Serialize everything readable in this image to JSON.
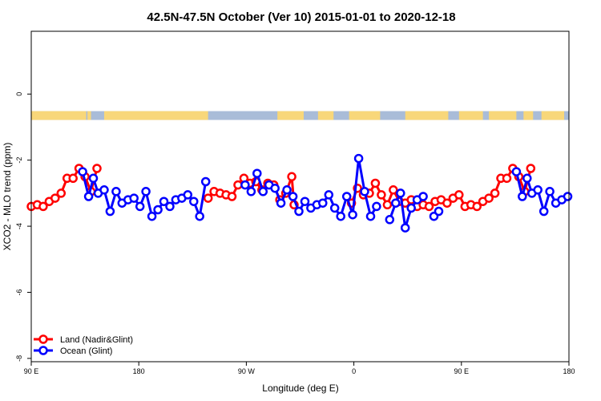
{
  "chart_data": {
    "type": "line",
    "title": "42.5N-47.5N October (Ver 10)   2015-01-01 to 2020-12-18",
    "xlabel": "Longitude (deg E)",
    "ylabel": "XCO2 - MLO trend (ppm)",
    "x_ticks": [
      {
        "value": 90,
        "label": "90 E"
      },
      {
        "value": 180,
        "label": "180"
      },
      {
        "value": 270,
        "label": "90 W"
      },
      {
        "value": 360,
        "label": "0"
      },
      {
        "value": 450,
        "label": "90 E"
      },
      {
        "value": 540,
        "label": "180"
      }
    ],
    "y_ticks": [
      0,
      -2,
      -4,
      -6,
      -8
    ],
    "xlim": [
      90,
      540
    ],
    "ylim": [
      -8.1,
      1.9
    ],
    "surface_band": {
      "y_center": -0.65,
      "land_color": "#f8d77a",
      "ocean_color": "#a9bcd8",
      "land_segments": [
        [
          90,
          136
        ],
        [
          137,
          140
        ],
        [
          151,
          238
        ],
        [
          296,
          318
        ],
        [
          330,
          343
        ],
        [
          356,
          382
        ],
        [
          403,
          439
        ],
        [
          448,
          468
        ],
        [
          473,
          496
        ],
        [
          502,
          510
        ],
        [
          517,
          536
        ]
      ]
    },
    "legend_position": "bottom-left",
    "series": [
      {
        "name": "Land (Nadir&Glint)",
        "color": "#ff0000",
        "segments": [
          [
            [
              90,
              -3.4
            ],
            [
              95,
              -3.35
            ],
            [
              100,
              -3.4
            ],
            [
              105,
              -3.25
            ],
            [
              110,
              -3.15
            ],
            [
              115,
              -3.0
            ],
            [
              120,
              -2.55
            ],
            [
              125,
              -2.55
            ],
            [
              130,
              -2.25
            ],
            [
              135,
              -2.5
            ],
            [
              140,
              -2.95
            ],
            [
              145,
              -2.25
            ]
          ],
          [
            [
              238,
              -3.15
            ],
            [
              243,
              -2.95
            ],
            [
              248,
              -3.0
            ],
            [
              253,
              -3.05
            ],
            [
              258,
              -3.1
            ],
            [
              263,
              -2.75
            ],
            [
              268,
              -2.55
            ],
            [
              273,
              -2.7
            ],
            [
              278,
              -2.65
            ],
            [
              283,
              -2.9
            ],
            [
              288,
              -2.7
            ],
            [
              293,
              -2.75
            ],
            [
              298,
              -3.2
            ],
            [
              303,
              -3.0
            ],
            [
              308,
              -2.5
            ],
            [
              310,
              -3.35
            ]
          ],
          [
            [
              358,
              -3.3
            ],
            [
              363,
              -2.85
            ],
            [
              368,
              -3.05
            ],
            [
              373,
              -3.0
            ],
            [
              378,
              -2.7
            ],
            [
              383,
              -3.05
            ],
            [
              388,
              -3.35
            ],
            [
              393,
              -2.9
            ],
            [
              398,
              -3.25
            ],
            [
              403,
              -3.3
            ],
            [
              408,
              -3.2
            ],
            [
              413,
              -3.4
            ],
            [
              418,
              -3.35
            ],
            [
              423,
              -3.4
            ],
            [
              428,
              -3.25
            ],
            [
              433,
              -3.2
            ],
            [
              438,
              -3.3
            ],
            [
              443,
              -3.15
            ],
            [
              448,
              -3.05
            ],
            [
              453,
              -3.4
            ],
            [
              458,
              -3.35
            ],
            [
              463,
              -3.4
            ],
            [
              468,
              -3.25
            ],
            [
              473,
              -3.15
            ],
            [
              478,
              -3.0
            ],
            [
              483,
              -2.55
            ],
            [
              488,
              -2.55
            ],
            [
              493,
              -2.25
            ],
            [
              498,
              -2.5
            ],
            [
              503,
              -2.95
            ],
            [
              508,
              -2.25
            ]
          ]
        ]
      },
      {
        "name": "Ocean (Glint)",
        "color": "#0000ff",
        "segments": [
          [
            [
              133,
              -2.35
            ],
            [
              138,
              -3.1
            ],
            [
              142,
              -2.55
            ],
            [
              146,
              -3.0
            ],
            [
              151,
              -2.9
            ],
            [
              156,
              -3.55
            ],
            [
              161,
              -2.95
            ],
            [
              166,
              -3.3
            ],
            [
              171,
              -3.2
            ],
            [
              176,
              -3.15
            ],
            [
              181,
              -3.4
            ],
            [
              186,
              -2.95
            ],
            [
              191,
              -3.7
            ],
            [
              196,
              -3.5
            ],
            [
              201,
              -3.25
            ],
            [
              206,
              -3.4
            ],
            [
              211,
              -3.2
            ],
            [
              216,
              -3.15
            ],
            [
              221,
              -3.05
            ],
            [
              226,
              -3.25
            ],
            [
              231,
              -3.7
            ],
            [
              236,
              -2.65
            ]
          ],
          [
            [
              269,
              -2.75
            ],
            [
              274,
              -2.95
            ],
            [
              279,
              -2.4
            ],
            [
              284,
              -2.95
            ],
            [
              289,
              -2.75
            ],
            [
              294,
              -2.85
            ],
            [
              299,
              -3.3
            ],
            [
              304,
              -2.9
            ],
            [
              309,
              -3.1
            ],
            [
              314,
              -3.55
            ],
            [
              319,
              -3.25
            ],
            [
              324,
              -3.45
            ],
            [
              329,
              -3.35
            ],
            [
              334,
              -3.3
            ],
            [
              339,
              -3.05
            ],
            [
              344,
              -3.45
            ],
            [
              349,
              -3.7
            ],
            [
              354,
              -3.1
            ],
            [
              359,
              -3.65
            ],
            [
              364,
              -1.95
            ],
            [
              369,
              -2.95
            ],
            [
              374,
              -3.7
            ],
            [
              379,
              -3.4
            ]
          ],
          [
            [
              390,
              -3.8
            ],
            [
              395,
              -3.3
            ],
            [
              399,
              -3.0
            ],
            [
              403,
              -4.05
            ],
            [
              408,
              -3.45
            ],
            [
              413,
              -3.2
            ],
            [
              418,
              -3.1
            ]
          ],
          [
            [
              427,
              -3.7
            ],
            [
              431,
              -3.55
            ]
          ],
          [
            [
              496,
              -2.35
            ],
            [
              501,
              -3.1
            ],
            [
              505,
              -2.55
            ],
            [
              509,
              -3.0
            ],
            [
              514,
              -2.9
            ],
            [
              519,
              -3.55
            ],
            [
              524,
              -2.95
            ],
            [
              529,
              -3.3
            ],
            [
              534,
              -3.2
            ],
            [
              539,
              -3.1
            ]
          ]
        ]
      }
    ]
  }
}
